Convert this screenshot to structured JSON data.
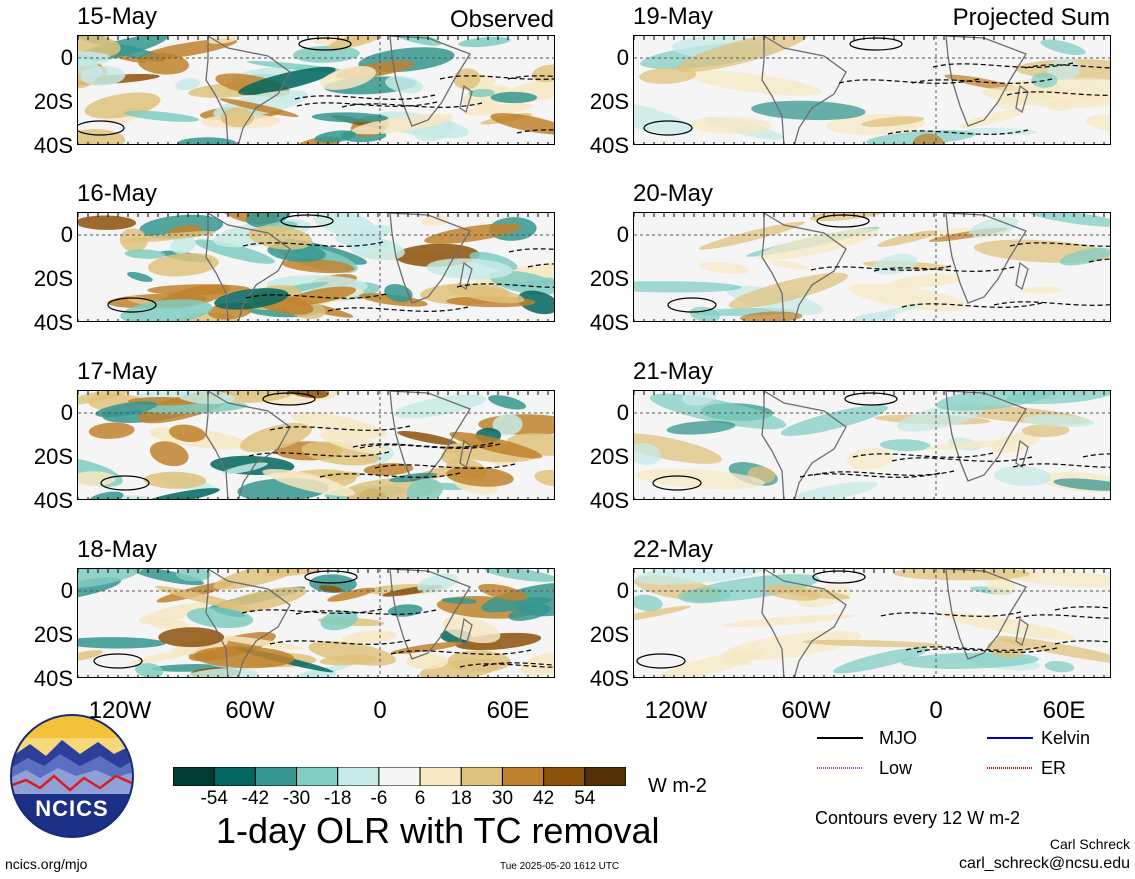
{
  "header": {
    "observed_label": "Observed",
    "projected_label": "Projected Sum"
  },
  "panels_left": [
    {
      "date": "15-May"
    },
    {
      "date": "16-May"
    },
    {
      "date": "17-May"
    },
    {
      "date": "18-May"
    }
  ],
  "panels_right": [
    {
      "date": "19-May"
    },
    {
      "date": "20-May"
    },
    {
      "date": "21-May"
    },
    {
      "date": "22-May"
    }
  ],
  "axes": {
    "y_ticks": [
      "0",
      "20S",
      "40S"
    ],
    "x_ticks": [
      "120W",
      "60W",
      "0",
      "60E"
    ]
  },
  "colorbar": {
    "values": [
      "-54",
      "-42",
      "-30",
      "-18",
      "-6",
      "6",
      "18",
      "30",
      "42",
      "54"
    ],
    "colors": [
      "#003c30",
      "#01665e",
      "#35978f",
      "#80cdc1",
      "#c7eae5",
      "#f5f5f5",
      "#f6e8c3",
      "#dfc27d",
      "#bf812d",
      "#8c510a",
      "#543005"
    ],
    "unit": "W m-2"
  },
  "title": "1-day OLR with TC removal",
  "legend": {
    "items": [
      {
        "label": "MJO",
        "color": "#000000"
      },
      {
        "label": "Kelvin",
        "color": "#0000cc"
      },
      {
        "label": "Low",
        "color": "#a040ff"
      },
      {
        "label": "ER",
        "color": "#e00000"
      }
    ],
    "contour_note": "Contours every 12 W m-2"
  },
  "credits": {
    "author": "Carl Schreck",
    "email": "carl_schreck@ncsu.edu",
    "site": "ncics.org/mjo",
    "timestamp": "Tue 2025-05-20 1612 UTC",
    "logo_text": "NCICS"
  }
}
